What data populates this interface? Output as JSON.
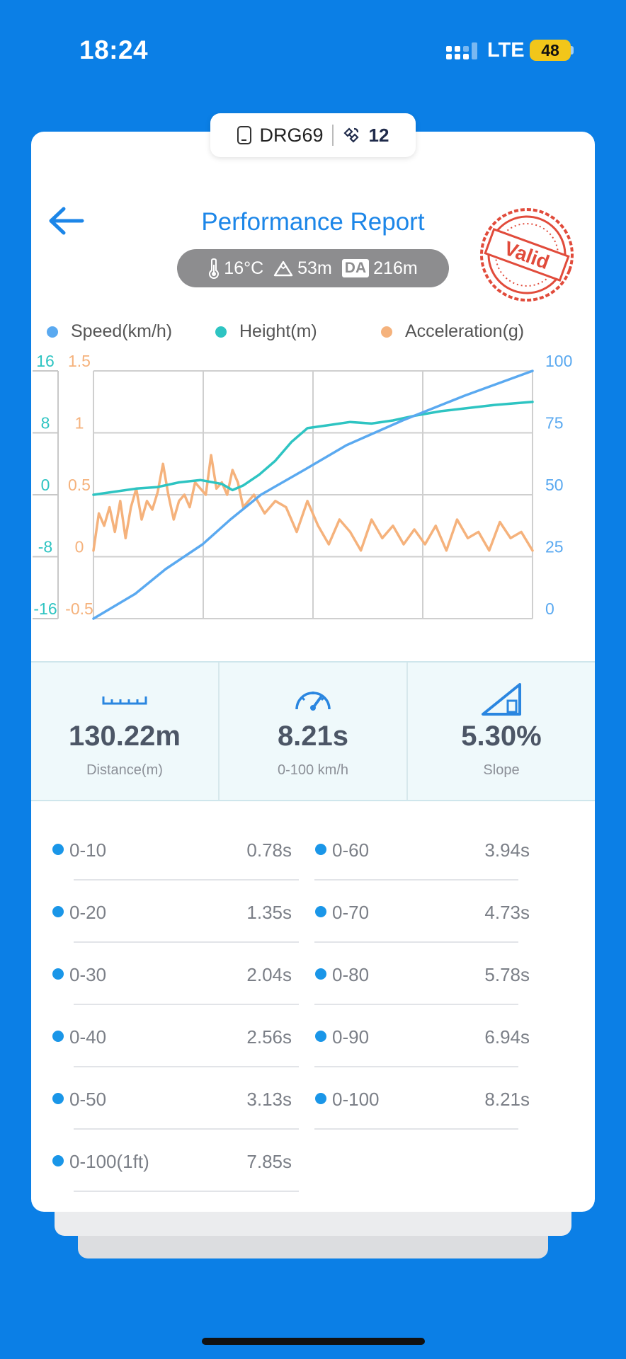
{
  "status_bar": {
    "time": "18:24",
    "network": "LTE",
    "battery": "48"
  },
  "device": {
    "name": "DRG69",
    "satellites": "12"
  },
  "header": {
    "title": "Performance Report",
    "stamp_text": "Valid"
  },
  "conditions": {
    "temperature": "16°C",
    "altitude": "53m",
    "da_label": "DA",
    "density_altitude": "216m"
  },
  "legend": [
    {
      "label": "Speed(km/h)",
      "color": "#5aa9f0"
    },
    {
      "label": "Height(m)",
      "color": "#2ec4c2"
    },
    {
      "label": "Acceleration(g)",
      "color": "#f5b27c"
    }
  ],
  "chart_data": {
    "type": "line",
    "y_axes": {
      "height": {
        "ticks": [
          "16",
          "8",
          "0",
          "-8",
          "-16"
        ],
        "range": [
          -16,
          16
        ],
        "color": "#2ec4c2"
      },
      "acceleration": {
        "ticks": [
          "1.5",
          "1",
          "0.5",
          "0",
          "-0.5"
        ],
        "range": [
          -0.5,
          1.5
        ],
        "color": "#f5b27c"
      },
      "speed": {
        "ticks": [
          "100",
          "75",
          "50",
          "25",
          "0"
        ],
        "range": [
          0,
          100
        ],
        "color": "#5aa9f0"
      }
    },
    "x": {
      "range": [
        0,
        8.21
      ],
      "unit": "s"
    },
    "grid": true,
    "series": [
      {
        "name": "Speed(km/h)",
        "axis": "speed",
        "color": "#5aa9f0",
        "x": [
          0,
          0.78,
          1.35,
          2.04,
          2.56,
          3.13,
          3.94,
          4.73,
          5.78,
          6.94,
          8.21
        ],
        "y": [
          0,
          10,
          20,
          30,
          40,
          50,
          60,
          70,
          80,
          90,
          100
        ]
      },
      {
        "name": "Height(m)",
        "axis": "height",
        "color": "#2ec4c2",
        "x": [
          0,
          0.4,
          0.8,
          1.2,
          1.6,
          2.0,
          2.4,
          2.6,
          2.8,
          3.1,
          3.4,
          3.7,
          4.0,
          4.4,
          4.8,
          5.2,
          5.6,
          6.0,
          6.5,
          7.0,
          7.5,
          8.21
        ],
        "y": [
          0,
          0.4,
          0.8,
          1.0,
          1.6,
          1.9,
          1.4,
          0.6,
          1.2,
          2.6,
          4.4,
          6.8,
          8.6,
          9.0,
          9.4,
          9.2,
          9.6,
          10.2,
          10.8,
          11.2,
          11.6,
          12.0
        ]
      },
      {
        "name": "Acceleration(g)",
        "axis": "acceleration",
        "color": "#f5b27c",
        "x": [
          0,
          0.1,
          0.2,
          0.3,
          0.4,
          0.5,
          0.6,
          0.7,
          0.8,
          0.9,
          1.0,
          1.1,
          1.2,
          1.3,
          1.4,
          1.5,
          1.6,
          1.7,
          1.8,
          1.9,
          2.0,
          2.1,
          2.2,
          2.3,
          2.4,
          2.5,
          2.6,
          2.7,
          2.8,
          2.9,
          3.0,
          3.2,
          3.4,
          3.6,
          3.8,
          4.0,
          4.2,
          4.4,
          4.6,
          4.8,
          5.0,
          5.2,
          5.4,
          5.6,
          5.8,
          6.0,
          6.2,
          6.4,
          6.6,
          6.8,
          7.0,
          7.2,
          7.4,
          7.6,
          7.8,
          8.0,
          8.21
        ],
        "y": [
          0.05,
          0.35,
          0.25,
          0.4,
          0.2,
          0.45,
          0.15,
          0.4,
          0.55,
          0.3,
          0.45,
          0.38,
          0.52,
          0.75,
          0.5,
          0.3,
          0.45,
          0.5,
          0.4,
          0.6,
          0.55,
          0.5,
          0.82,
          0.55,
          0.6,
          0.5,
          0.7,
          0.6,
          0.4,
          0.45,
          0.5,
          0.35,
          0.45,
          0.4,
          0.2,
          0.45,
          0.25,
          0.1,
          0.3,
          0.2,
          0.05,
          0.3,
          0.15,
          0.25,
          0.1,
          0.22,
          0.1,
          0.25,
          0.05,
          0.3,
          0.15,
          0.2,
          0.05,
          0.28,
          0.15,
          0.2,
          0.05
        ]
      }
    ]
  },
  "stats": [
    {
      "value": "130.22m",
      "label": "Distance(m)",
      "icon": "ruler-icon"
    },
    {
      "value": "8.21s",
      "label": "0-100 km/h",
      "icon": "speedometer-icon"
    },
    {
      "value": "5.30%",
      "label": "Slope",
      "icon": "slope-icon"
    }
  ],
  "splits": {
    "left": [
      {
        "range": "0-10",
        "time": "0.78s"
      },
      {
        "range": "0-20",
        "time": "1.35s"
      },
      {
        "range": "0-30",
        "time": "2.04s"
      },
      {
        "range": "0-40",
        "time": "2.56s"
      },
      {
        "range": "0-50",
        "time": "3.13s"
      },
      {
        "range": "0-100(1ft)",
        "time": "7.85s"
      }
    ],
    "right": [
      {
        "range": "0-60",
        "time": "3.94s"
      },
      {
        "range": "0-70",
        "time": "4.73s"
      },
      {
        "range": "0-80",
        "time": "5.78s"
      },
      {
        "range": "0-90",
        "time": "6.94s"
      },
      {
        "range": "0-100",
        "time": "8.21s"
      }
    ]
  }
}
